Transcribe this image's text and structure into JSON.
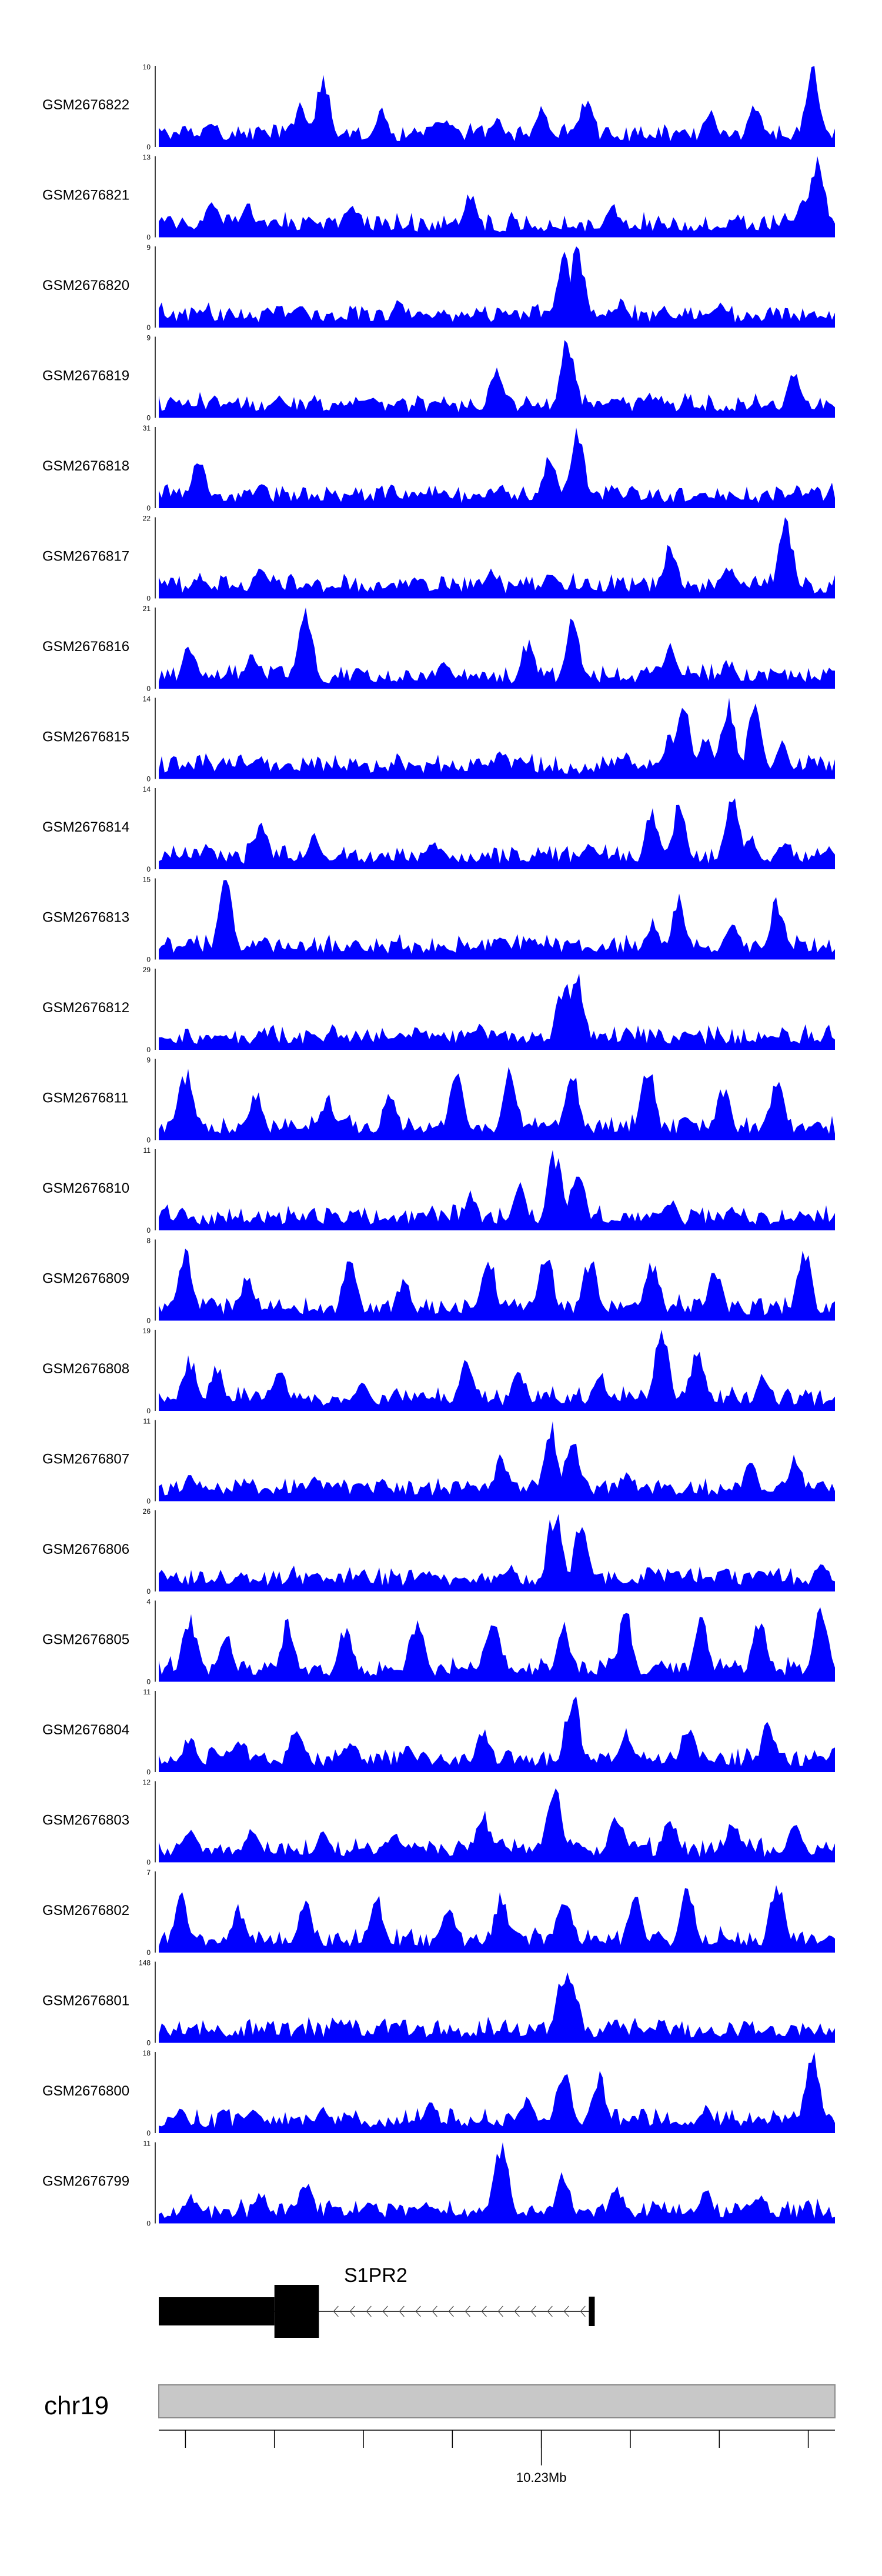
{
  "chart_data": {
    "type": "area",
    "title": "",
    "x_unit": "Mb",
    "x_range": [
      10.187,
      10.263
    ],
    "tick_positions": [
      10.19,
      10.2,
      10.21,
      10.22,
      10.23,
      10.24,
      10.25,
      10.26
    ],
    "tick_labels": [
      {
        "pos": 10.23,
        "label": "10.23Mb"
      }
    ],
    "chromosome": "chr19",
    "gene": {
      "name": "S1PR2",
      "strand": "-",
      "start": 10.187,
      "end": 10.236,
      "thick_start": 10.2,
      "thick_end": 10.205
    },
    "series_color": "#0000ff",
    "tracks": [
      {
        "name": "GSM2676822",
        "ymax": 10,
        "ymin": 0,
        "peaks": [
          [
            10.193,
            0.35
          ],
          [
            10.203,
            0.55
          ],
          [
            10.2055,
            0.9
          ],
          [
            10.212,
            0.45
          ],
          [
            10.219,
            0.35
          ],
          [
            10.225,
            0.35
          ],
          [
            10.23,
            0.5
          ],
          [
            10.235,
            0.6
          ],
          [
            10.249,
            0.45
          ],
          [
            10.254,
            0.5
          ],
          [
            10.2605,
            1.0
          ]
        ]
      },
      {
        "name": "GSM2676821",
        "ymax": 13,
        "ymin": 0,
        "peaks": [
          [
            10.193,
            0.45
          ],
          [
            10.197,
            0.4
          ],
          [
            10.204,
            0.3
          ],
          [
            10.209,
            0.4
          ],
          [
            10.222,
            0.55
          ],
          [
            10.238,
            0.4
          ],
          [
            10.2595,
            0.45
          ],
          [
            10.261,
            1.0
          ]
        ]
      },
      {
        "name": "GSM2676820",
        "ymax": 9,
        "ymin": 0,
        "peaks": [
          [
            10.203,
            0.3
          ],
          [
            10.214,
            0.35
          ],
          [
            10.223,
            0.25
          ],
          [
            10.2325,
            0.9
          ],
          [
            10.234,
            1.0
          ],
          [
            10.239,
            0.35
          ],
          [
            10.25,
            0.3
          ]
        ]
      },
      {
        "name": "GSM2676819",
        "ymax": 9,
        "ymin": 0,
        "peaks": [
          [
            10.2005,
            0.3
          ],
          [
            10.211,
            0.3
          ],
          [
            10.225,
            0.7
          ],
          [
            10.233,
            1.0
          ],
          [
            10.242,
            0.3
          ],
          [
            10.2585,
            0.6
          ]
        ]
      },
      {
        "name": "GSM2676818",
        "ymax": 31,
        "ymin": 0,
        "peaks": [
          [
            10.1915,
            0.6
          ],
          [
            10.1985,
            0.35
          ],
          [
            10.2255,
            0.3
          ],
          [
            10.231,
            0.65
          ],
          [
            10.234,
            1.0
          ],
          [
            10.238,
            0.3
          ]
        ]
      },
      {
        "name": "GSM2676817",
        "ymax": 22,
        "ymin": 0,
        "peaks": [
          [
            10.1915,
            0.3
          ],
          [
            10.196,
            0.15
          ],
          [
            10.1985,
            0.45
          ],
          [
            10.212,
            0.15
          ],
          [
            10.2245,
            0.35
          ],
          [
            10.231,
            0.35
          ],
          [
            10.2445,
            0.65
          ],
          [
            10.251,
            0.4
          ],
          [
            10.2575,
            1.0
          ]
        ]
      },
      {
        "name": "GSM2676816",
        "ymax": 21,
        "ymin": 0,
        "peaks": [
          [
            10.1905,
            0.55
          ],
          [
            10.1975,
            0.45
          ],
          [
            10.2035,
            1.0
          ],
          [
            10.219,
            0.35
          ],
          [
            10.2285,
            0.6
          ],
          [
            10.2335,
            0.85
          ],
          [
            10.2445,
            0.6
          ],
          [
            10.251,
            0.35
          ]
        ]
      },
      {
        "name": "GSM2676815",
        "ymax": 14,
        "ymin": 0,
        "peaks": [
          [
            10.2255,
            0.35
          ],
          [
            10.2395,
            0.3
          ],
          [
            10.2445,
            0.6
          ],
          [
            10.246,
            1.0
          ],
          [
            10.2485,
            0.55
          ],
          [
            10.251,
            1.0
          ],
          [
            10.254,
            0.9
          ],
          [
            10.257,
            0.45
          ]
        ]
      },
      {
        "name": "GSM2676814",
        "ymax": 14,
        "ymin": 0,
        "peaks": [
          [
            10.1925,
            0.3
          ],
          [
            10.1985,
            0.6
          ],
          [
            10.2045,
            0.45
          ],
          [
            10.218,
            0.35
          ],
          [
            10.2355,
            0.35
          ],
          [
            10.2425,
            0.75
          ],
          [
            10.2455,
            0.8
          ],
          [
            10.2515,
            1.0
          ],
          [
            10.2535,
            0.4
          ],
          [
            10.257,
            0.35
          ]
        ]
      },
      {
        "name": "GSM2676813",
        "ymax": 15,
        "ymin": 0,
        "peaks": [
          [
            10.1905,
            0.25
          ],
          [
            10.1945,
            1.0
          ],
          [
            10.1985,
            0.25
          ],
          [
            10.2255,
            0.3
          ],
          [
            10.2285,
            0.25
          ],
          [
            10.2425,
            0.5
          ],
          [
            10.2455,
            0.75
          ],
          [
            10.2515,
            0.5
          ],
          [
            10.2565,
            0.75
          ]
        ]
      },
      {
        "name": "GSM2676812",
        "ymax": 29,
        "ymin": 0,
        "peaks": [
          [
            10.1985,
            0.25
          ],
          [
            10.2045,
            0.2
          ],
          [
            10.223,
            0.3
          ],
          [
            10.2325,
            0.85
          ],
          [
            10.234,
            0.95
          ],
          [
            10.24,
            0.2
          ]
        ]
      },
      {
        "name": "GSM2676811",
        "ymax": 9,
        "ymin": 0,
        "peaks": [
          [
            10.19,
            0.9
          ],
          [
            10.198,
            0.6
          ],
          [
            10.206,
            0.55
          ],
          [
            10.213,
            0.6
          ],
          [
            10.2205,
            0.8
          ],
          [
            10.2265,
            0.9
          ],
          [
            10.2335,
            0.85
          ],
          [
            10.242,
            0.9
          ],
          [
            10.2505,
            0.65
          ],
          [
            10.2565,
            0.75
          ]
        ]
      },
      {
        "name": "GSM2676810",
        "ymax": 11,
        "ymin": 0,
        "peaks": [
          [
            10.209,
            0.25
          ],
          [
            10.222,
            0.45
          ],
          [
            10.2275,
            0.55
          ],
          [
            10.2315,
            1.0
          ],
          [
            10.234,
            0.8
          ],
          [
            10.2445,
            0.4
          ],
          [
            10.2515,
            0.3
          ]
        ]
      },
      {
        "name": "GSM2676809",
        "ymax": 8,
        "ymin": 0,
        "peaks": [
          [
            10.19,
            0.85
          ],
          [
            10.197,
            0.55
          ],
          [
            10.2085,
            0.8
          ],
          [
            10.2145,
            0.5
          ],
          [
            10.224,
            0.85
          ],
          [
            10.2305,
            0.9
          ],
          [
            10.2355,
            0.8
          ],
          [
            10.2425,
            0.75
          ],
          [
            10.2495,
            0.7
          ],
          [
            10.2595,
            0.9
          ]
        ]
      },
      {
        "name": "GSM2676808",
        "ymax": 19,
        "ymin": 0,
        "peaks": [
          [
            10.1905,
            0.65
          ],
          [
            10.1935,
            0.55
          ],
          [
            10.2005,
            0.55
          ],
          [
            10.21,
            0.35
          ],
          [
            10.2215,
            0.6
          ],
          [
            10.2275,
            0.5
          ],
          [
            10.2365,
            0.5
          ],
          [
            10.2435,
            1.0
          ],
          [
            10.2475,
            0.75
          ],
          [
            10.255,
            0.45
          ]
        ]
      },
      {
        "name": "GSM2676807",
        "ymax": 11,
        "ymin": 0,
        "peaks": [
          [
            10.1905,
            0.3
          ],
          [
            10.197,
            0.3
          ],
          [
            10.2045,
            0.35
          ],
          [
            10.222,
            0.25
          ],
          [
            10.2255,
            0.55
          ],
          [
            10.231,
            0.95
          ],
          [
            10.2335,
            0.85
          ],
          [
            10.2395,
            0.35
          ],
          [
            10.2535,
            0.5
          ],
          [
            10.2585,
            0.55
          ]
        ]
      },
      {
        "name": "GSM2676806",
        "ymax": 26,
        "ymin": 0,
        "peaks": [
          [
            10.196,
            0.2
          ],
          [
            10.2045,
            0.25
          ],
          [
            10.2175,
            0.25
          ],
          [
            10.2265,
            0.35
          ],
          [
            10.2315,
            1.0
          ],
          [
            10.2345,
            0.85
          ],
          [
            10.2425,
            0.3
          ],
          [
            10.2545,
            0.3
          ],
          [
            10.2615,
            0.4
          ]
        ]
      },
      {
        "name": "GSM2676805",
        "ymax": 4,
        "ymin": 0,
        "peaks": [
          [
            10.1905,
            0.85
          ],
          [
            10.1945,
            0.6
          ],
          [
            10.2015,
            0.75
          ],
          [
            10.208,
            0.7
          ],
          [
            10.216,
            0.8
          ],
          [
            10.2245,
            0.85
          ],
          [
            10.2325,
            0.7
          ],
          [
            10.2395,
            0.85
          ],
          [
            10.248,
            0.75
          ],
          [
            10.2545,
            0.8
          ],
          [
            10.2615,
            0.95
          ]
        ]
      },
      {
        "name": "GSM2676804",
        "ymax": 11,
        "ymin": 0,
        "peaks": [
          [
            10.1905,
            0.45
          ],
          [
            10.196,
            0.45
          ],
          [
            10.2025,
            0.55
          ],
          [
            10.2085,
            0.4
          ],
          [
            10.215,
            0.35
          ],
          [
            10.2235,
            0.55
          ],
          [
            10.2335,
            1.0
          ],
          [
            10.2395,
            0.55
          ],
          [
            10.2465,
            0.6
          ],
          [
            10.2555,
            0.6
          ]
        ]
      },
      {
        "name": "GSM2676803",
        "ymax": 12,
        "ymin": 0,
        "peaks": [
          [
            10.1905,
            0.45
          ],
          [
            10.1975,
            0.45
          ],
          [
            10.2055,
            0.4
          ],
          [
            10.2135,
            0.35
          ],
          [
            10.2235,
            0.6
          ],
          [
            10.2315,
            1.0
          ],
          [
            10.2385,
            0.65
          ],
          [
            10.2445,
            0.55
          ],
          [
            10.2515,
            0.5
          ],
          [
            10.2585,
            0.45
          ]
        ]
      },
      {
        "name": "GSM2676802",
        "ymax": 7,
        "ymin": 0,
        "peaks": [
          [
            10.1895,
            0.7
          ],
          [
            10.196,
            0.55
          ],
          [
            10.2035,
            0.6
          ],
          [
            10.2115,
            0.7
          ],
          [
            10.2195,
            0.65
          ],
          [
            10.2255,
            0.7
          ],
          [
            10.2325,
            0.75
          ],
          [
            10.2405,
            0.7
          ],
          [
            10.2465,
            0.8
          ],
          [
            10.2565,
            0.95
          ]
        ]
      },
      {
        "name": "GSM2676801",
        "ymax": 148,
        "ymin": 0,
        "peaks": [
          [
            10.1985,
            0.15
          ],
          [
            10.2295,
            0.15
          ],
          [
            10.2325,
            0.9
          ],
          [
            10.2335,
            0.75
          ],
          [
            10.2445,
            0.05
          ]
        ]
      },
      {
        "name": "GSM2676800",
        "ymax": 18,
        "ymin": 0,
        "peaks": [
          [
            10.1895,
            0.3
          ],
          [
            10.1975,
            0.35
          ],
          [
            10.2055,
            0.35
          ],
          [
            10.2175,
            0.4
          ],
          [
            10.2285,
            0.45
          ],
          [
            10.2325,
            0.85
          ],
          [
            10.2365,
            0.7
          ],
          [
            10.2485,
            0.35
          ],
          [
            10.2605,
            1.0
          ]
        ]
      },
      {
        "name": "GSM2676799",
        "ymax": 11,
        "ymin": 0,
        "peaks": [
          [
            10.1905,
            0.35
          ],
          [
            10.1985,
            0.4
          ],
          [
            10.2035,
            0.5
          ],
          [
            10.2105,
            0.3
          ],
          [
            10.2255,
            1.0
          ],
          [
            10.2325,
            0.6
          ],
          [
            10.2385,
            0.45
          ],
          [
            10.2485,
            0.4
          ],
          [
            10.2545,
            0.35
          ]
        ]
      }
    ]
  }
}
